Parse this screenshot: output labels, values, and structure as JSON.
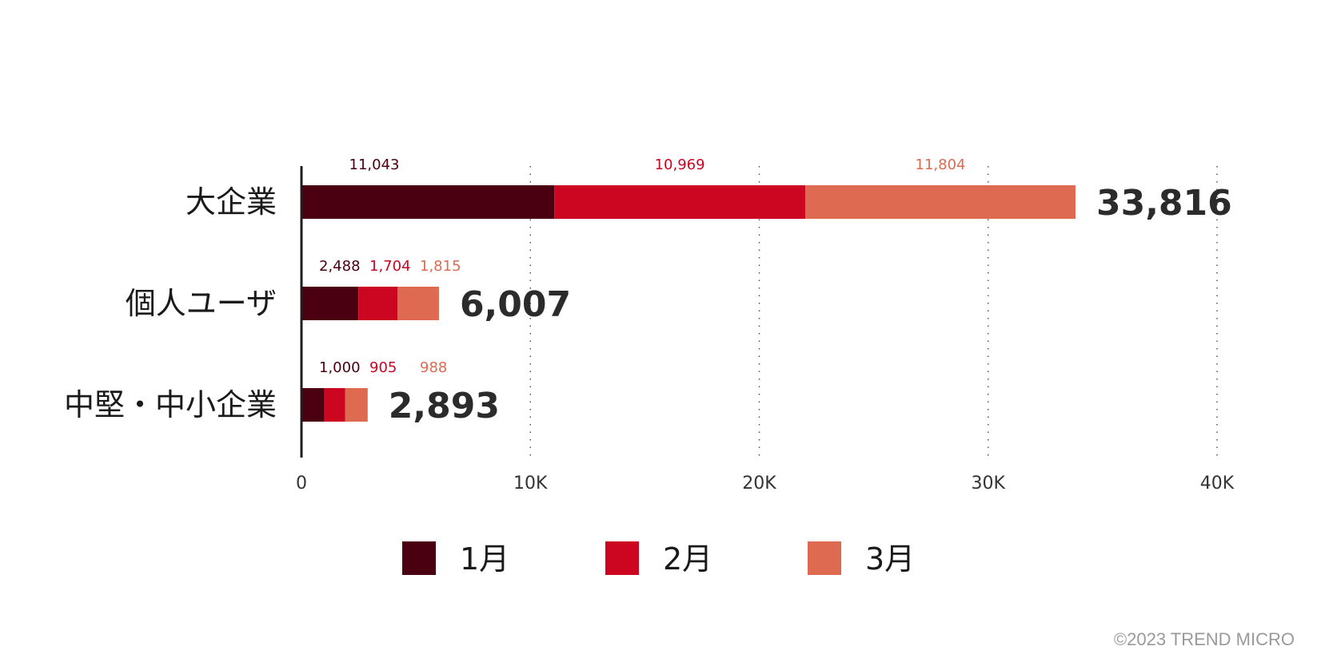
{
  "chart_data": {
    "type": "bar",
    "orientation": "horizontal",
    "stacked": true,
    "categories": [
      "大企業",
      "個人ユーザ",
      "中堅・中小企業"
    ],
    "series": [
      {
        "name": "1月",
        "values": [
          11043,
          2488,
          1000
        ],
        "value_labels": [
          "11,043",
          "2,488",
          "1,000"
        ],
        "color": "#4a0010"
      },
      {
        "name": "2月",
        "values": [
          10969,
          1704,
          905
        ],
        "value_labels": [
          "10,969",
          "1,704",
          "905"
        ],
        "color": "#cc0520"
      },
      {
        "name": "3月",
        "values": [
          11804,
          1815,
          988
        ],
        "value_labels": [
          "11,804",
          "1,815",
          "988"
        ],
        "color": "#de6a52"
      }
    ],
    "totals": [
      "33,816",
      "6,007",
      "2,893"
    ],
    "total_values": [
      33816,
      6007,
      2893
    ],
    "xlim": [
      0,
      40000
    ],
    "xticks": [
      0,
      10000,
      20000,
      30000,
      40000
    ],
    "xtick_labels": [
      "0",
      "10K",
      "20K",
      "30K",
      "40K"
    ],
    "grid": "vertical-dotted",
    "legend_position": "bottom"
  },
  "footer": {
    "copyright": "©2023 TREND MICRO"
  }
}
